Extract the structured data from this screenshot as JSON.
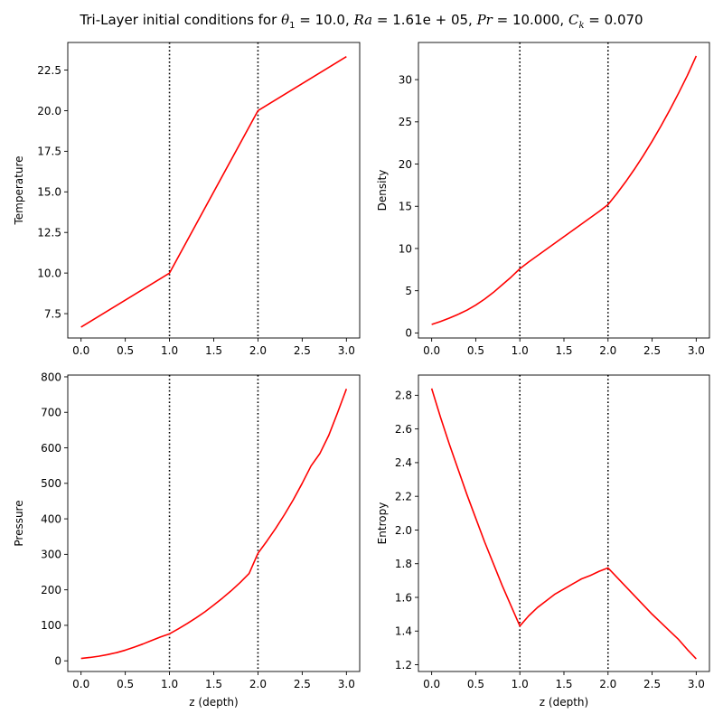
{
  "title": {
    "prefix": "Tri-Layer initial conditions for ",
    "theta_symbol": "θ",
    "theta_sub": "1",
    "theta_value": " = 10.0, ",
    "ra_symbol": "Ra",
    "ra_value": " = 1.61e + 05, ",
    "pr_symbol": "Pr",
    "pr_value": " = 10.000, ",
    "ck_symbol": "C",
    "ck_sub": "k",
    "ck_value": " = 0.070"
  },
  "chart_data": [
    {
      "type": "line",
      "title": "",
      "xlabel": "",
      "ylabel": "Temperature",
      "xlim": [
        -0.15,
        3.15
      ],
      "ylim": [
        6.0,
        24.2
      ],
      "xticks": [
        0.0,
        0.5,
        1.0,
        1.5,
        2.0,
        2.5,
        3.0
      ],
      "xtick_labels": [
        "0.0",
        "0.5",
        "1.0",
        "1.5",
        "2.0",
        "2.5",
        "3.0"
      ],
      "yticks": [
        7.5,
        10.0,
        12.5,
        15.0,
        17.5,
        20.0,
        22.5
      ],
      "ytick_labels": [
        "7.5",
        "10.0",
        "12.5",
        "15.0",
        "17.5",
        "20.0",
        "22.5"
      ],
      "vlines": [
        1.0,
        2.0
      ],
      "series": [
        {
          "color": "#ff0000",
          "x": [
            0.0,
            1.0,
            2.0,
            3.0
          ],
          "y": [
            6.67,
            10.0,
            20.0,
            23.33
          ]
        }
      ]
    },
    {
      "type": "line",
      "title": "",
      "xlabel": "",
      "ylabel": "Density",
      "xlim": [
        -0.15,
        3.15
      ],
      "ylim": [
        -0.6,
        34.4
      ],
      "xticks": [
        0.0,
        0.5,
        1.0,
        1.5,
        2.0,
        2.5,
        3.0
      ],
      "xtick_labels": [
        "0.0",
        "0.5",
        "1.0",
        "1.5",
        "2.0",
        "2.5",
        "3.0"
      ],
      "yticks": [
        0,
        5,
        10,
        15,
        20,
        25,
        30
      ],
      "ytick_labels": [
        "0",
        "5",
        "10",
        "15",
        "20",
        "25",
        "30"
      ],
      "vlines": [
        1.0,
        2.0
      ],
      "series": [
        {
          "color": "#ff0000",
          "x": [
            0.0,
            0.1,
            0.2,
            0.3,
            0.4,
            0.5,
            0.6,
            0.7,
            0.8,
            0.9,
            1.0,
            1.1,
            1.2,
            1.3,
            1.4,
            1.5,
            1.6,
            1.7,
            1.8,
            1.9,
            2.0,
            2.1,
            2.2,
            2.3,
            2.4,
            2.5,
            2.6,
            2.7,
            2.8,
            2.9,
            3.0
          ],
          "y": [
            1.0,
            1.35,
            1.75,
            2.2,
            2.7,
            3.3,
            4.0,
            4.8,
            5.7,
            6.6,
            7.6,
            8.4,
            9.15,
            9.9,
            10.65,
            11.4,
            12.15,
            12.9,
            13.65,
            14.4,
            15.2,
            16.5,
            17.9,
            19.4,
            21.0,
            22.7,
            24.5,
            26.4,
            28.4,
            30.5,
            32.8
          ]
        }
      ]
    },
    {
      "type": "line",
      "title": "",
      "xlabel": "z (depth)",
      "ylabel": "Pressure",
      "xlim": [
        -0.15,
        3.15
      ],
      "ylim": [
        -30,
        805
      ],
      "xticks": [
        0.0,
        0.5,
        1.0,
        1.5,
        2.0,
        2.5,
        3.0
      ],
      "xtick_labels": [
        "0.0",
        "0.5",
        "1.0",
        "1.5",
        "2.0",
        "2.5",
        "3.0"
      ],
      "yticks": [
        0,
        100,
        200,
        300,
        400,
        500,
        600,
        700,
        800
      ],
      "ytick_labels": [
        "0",
        "100",
        "200",
        "300",
        "400",
        "500",
        "600",
        "700",
        "800"
      ],
      "vlines": [
        1.0,
        2.0
      ],
      "series": [
        {
          "color": "#ff0000",
          "x": [
            0.0,
            0.1,
            0.2,
            0.3,
            0.4,
            0.5,
            0.6,
            0.7,
            0.8,
            0.9,
            1.0,
            1.1,
            1.2,
            1.3,
            1.4,
            1.5,
            1.6,
            1.7,
            1.8,
            1.9,
            2.0,
            2.1,
            2.2,
            2.3,
            2.4,
            2.5,
            2.6,
            2.7,
            2.8,
            2.9,
            3.0
          ],
          "y": [
            6.7,
            9.5,
            13.0,
            17.5,
            23.0,
            30.0,
            38.5,
            47.5,
            57.5,
            67.5,
            76.0,
            90.0,
            105.0,
            121.0,
            138.0,
            157.0,
            177.0,
            198.0,
            221.0,
            246.0,
            303.0,
            337.0,
            373.0,
            412.0,
            454.0,
            500.0,
            549.0,
            584.0,
            635.0,
            699.0,
            766.0
          ]
        }
      ]
    },
    {
      "type": "line",
      "title": "",
      "xlabel": "z (depth)",
      "ylabel": "Entropy",
      "xlim": [
        -0.15,
        3.15
      ],
      "ylim": [
        1.16,
        2.92
      ],
      "xticks": [
        0.0,
        0.5,
        1.0,
        1.5,
        2.0,
        2.5,
        3.0
      ],
      "xtick_labels": [
        "0.0",
        "0.5",
        "1.0",
        "1.5",
        "2.0",
        "2.5",
        "3.0"
      ],
      "yticks": [
        1.2,
        1.4,
        1.6,
        1.8,
        2.0,
        2.2,
        2.4,
        2.6,
        2.8
      ],
      "ytick_labels": [
        "1.2",
        "1.4",
        "1.6",
        "1.8",
        "2.0",
        "2.2",
        "2.4",
        "2.6",
        "2.8"
      ],
      "vlines": [
        1.0,
        2.0
      ],
      "series": [
        {
          "color": "#ff0000",
          "x": [
            0.0,
            0.1,
            0.2,
            0.3,
            0.4,
            0.5,
            0.6,
            0.7,
            0.8,
            0.9,
            1.0,
            1.1,
            1.2,
            1.3,
            1.4,
            1.5,
            1.6,
            1.7,
            1.8,
            1.9,
            2.0,
            2.1,
            2.2,
            2.3,
            2.4,
            2.5,
            2.6,
            2.7,
            2.8,
            2.9,
            3.0
          ],
          "y": [
            2.84,
            2.67,
            2.51,
            2.36,
            2.21,
            2.07,
            1.93,
            1.8,
            1.67,
            1.55,
            1.43,
            1.49,
            1.54,
            1.58,
            1.62,
            1.65,
            1.68,
            1.71,
            1.73,
            1.755,
            1.775,
            1.72,
            1.665,
            1.61,
            1.555,
            1.5,
            1.45,
            1.4,
            1.35,
            1.29,
            1.235
          ]
        }
      ]
    }
  ]
}
